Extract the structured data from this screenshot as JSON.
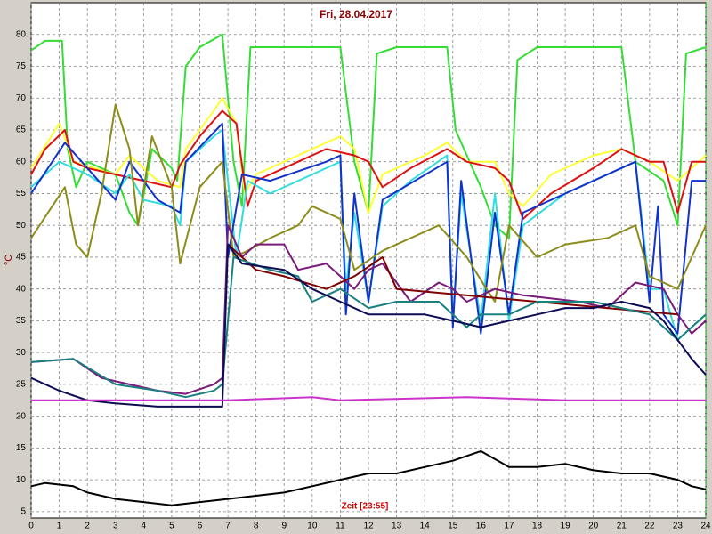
{
  "chart_data": {
    "type": "line",
    "title": "Fri, 28.04.2017",
    "xlabel": "Zeit [23:55]",
    "ylabel": "°C",
    "xlim": [
      0,
      24
    ],
    "xticks": [
      0,
      1,
      2,
      3,
      4,
      5,
      6,
      7,
      8,
      9,
      10,
      11,
      12,
      13,
      14,
      15,
      16,
      17,
      18,
      19,
      20,
      21,
      22,
      23,
      24
    ],
    "ylim": [
      4,
      85
    ],
    "yticks": [
      5,
      10,
      15,
      20,
      25,
      30,
      35,
      40,
      45,
      50,
      55,
      60,
      65,
      70,
      75,
      80
    ],
    "grid": true,
    "series": [
      {
        "color": "#33dd33",
        "x": [
          0,
          0.5,
          1.1,
          1.3,
          1.6,
          2,
          2.5,
          3,
          3.5,
          3.8,
          4.3,
          5,
          5.2,
          5.5,
          6,
          6.8,
          7.2,
          7.5,
          7.8,
          8.5,
          10,
          11,
          11.5,
          12,
          12.3,
          13,
          14.8,
          15.1,
          16,
          16.5,
          17,
          17.3,
          18,
          21,
          21.5,
          22.5,
          23,
          23.3,
          24
        ],
        "values": [
          77.5,
          79,
          79,
          62,
          56,
          60,
          59,
          58,
          52,
          50,
          62,
          59,
          57,
          75,
          78,
          80,
          60,
          53,
          78,
          78,
          78,
          78,
          60,
          52,
          77,
          78,
          78,
          65,
          56,
          50,
          48,
          76,
          78,
          78,
          60,
          57,
          50,
          77,
          78
        ]
      },
      {
        "color": "#ffff33",
        "x": [
          0,
          1,
          1.5,
          3,
          3.5,
          4.5,
          5.3,
          5.5,
          6.5,
          6.8,
          7.3,
          7.6,
          8,
          10,
          11,
          11.5,
          12,
          12.5,
          14,
          14.8,
          15.5,
          16.5,
          17,
          17.5,
          18.5,
          20,
          21,
          22,
          23,
          24
        ],
        "values": [
          59,
          66,
          60,
          58,
          61,
          57,
          56,
          62,
          68,
          70,
          66,
          55,
          58,
          62,
          64,
          62,
          52,
          58,
          61,
          63,
          60,
          60,
          55,
          53,
          58,
          61,
          62,
          60,
          57,
          61
        ]
      },
      {
        "color": "#dd1111",
        "x": [
          0,
          0.5,
          1.2,
          1.5,
          2,
          3,
          4,
          5,
          5.3,
          6,
          6.8,
          7.3,
          7.7,
          8,
          9.5,
          10.5,
          11.5,
          12,
          12.5,
          13.5,
          14.8,
          15.5,
          16.5,
          17,
          17.5,
          18.5,
          20,
          21,
          22,
          22.5,
          23,
          23.5,
          24
        ],
        "values": [
          58,
          62,
          65,
          60,
          59,
          58,
          57,
          56,
          59.5,
          64,
          68,
          66,
          53,
          57,
          60,
          62,
          61,
          60,
          56,
          59,
          62,
          60,
          59,
          57,
          51,
          55,
          59,
          62,
          60,
          60,
          52,
          60,
          60
        ]
      },
      {
        "color": "#33dddd",
        "x": [
          0,
          1,
          2,
          3,
          3.5,
          4,
          5,
          5.3,
          5.5,
          6.5,
          6.8,
          7.3,
          7.7,
          8.5,
          10,
          11,
          11.2,
          11.5,
          12,
          12.5,
          13.5,
          14.8,
          15,
          15.3,
          16,
          16.5,
          17,
          17.5,
          19,
          20.5,
          21.5,
          22,
          22.5,
          23,
          24
        ],
        "values": [
          56,
          60,
          58,
          55,
          58,
          54,
          53,
          50,
          60,
          64,
          65,
          45,
          57,
          55,
          58,
          60,
          40,
          52,
          38,
          53,
          57,
          61,
          35,
          55,
          35,
          55,
          35,
          50,
          55,
          58,
          60,
          40,
          40,
          32,
          36
        ]
      },
      {
        "color": "#1133cc",
        "x": [
          0,
          1.2,
          3,
          3.5,
          4.5,
          5.3,
          5.5,
          6.8,
          7,
          7.5,
          8.5,
          10.5,
          11,
          11.2,
          11.5,
          12,
          12.5,
          14.8,
          15,
          15.3,
          16,
          16.5,
          17,
          17.5,
          19.5,
          21.5,
          22,
          22.3,
          22.5,
          23,
          23.5,
          24
        ],
        "values": [
          55,
          63,
          54,
          60,
          54,
          52,
          60,
          66,
          45,
          58,
          57,
          60,
          61,
          36,
          55,
          38,
          54,
          60,
          34,
          57,
          33,
          52,
          36,
          52,
          56,
          60,
          38,
          53,
          36,
          33,
          57,
          57
        ]
      },
      {
        "color": "#8c8c1a",
        "x": [
          0,
          1.2,
          1.6,
          2,
          2.5,
          3,
          3.5,
          3.8,
          4.3,
          5,
          5.3,
          6,
          6.8,
          7.2,
          7.7,
          8.5,
          9.5,
          10,
          11,
          11.5,
          12.5,
          13.5,
          14.5,
          15.5,
          16.2,
          16.5,
          17,
          18,
          19,
          20.5,
          21.5,
          22,
          23,
          23.5,
          24
        ],
        "values": [
          48,
          56,
          47,
          45,
          55,
          69,
          62,
          50,
          64,
          56,
          44,
          56,
          60,
          45,
          46,
          48,
          50,
          53,
          51,
          43,
          46,
          48,
          50,
          45,
          40,
          38,
          50,
          45,
          47,
          48,
          50,
          42,
          40,
          45,
          50
        ]
      },
      {
        "color": "#7a1a7a",
        "x": [
          0,
          1.5,
          2.5,
          3.5,
          4.5,
          5.5,
          6.5,
          6.8,
          7,
          7.5,
          8,
          9,
          9.5,
          10.5,
          11.5,
          12,
          12.5,
          13.5,
          14.5,
          15,
          15.5,
          16.5,
          17.5,
          19.5,
          20.5,
          21.5,
          22.5,
          23,
          23.5,
          24
        ],
        "values": [
          28.5,
          29,
          26,
          25,
          24,
          23.5,
          25,
          26,
          50,
          45,
          47,
          47,
          43,
          44,
          40,
          43,
          44,
          38,
          41,
          40,
          38,
          40,
          39,
          38,
          37,
          41,
          40,
          36,
          33,
          35
        ]
      },
      {
        "color": "#800000",
        "x": [
          7,
          8,
          9,
          10.5,
          11.5,
          12.5,
          13,
          23
        ],
        "values": [
          47,
          43,
          42,
          40,
          42,
          45,
          40,
          36
        ]
      },
      {
        "color": "#1a8080",
        "x": [
          0,
          1.5,
          3,
          4.5,
          5.5,
          6.5,
          6.8,
          7.2,
          8.5,
          9.5,
          10,
          11,
          12,
          13,
          14.5,
          15.5,
          16,
          17,
          18,
          20,
          21,
          22,
          23,
          24
        ],
        "values": [
          28.5,
          29,
          25,
          24,
          23,
          24,
          25,
          45,
          43,
          42,
          38,
          40,
          37,
          38,
          38,
          34,
          36,
          36,
          38,
          38,
          37,
          36,
          32,
          36
        ]
      },
      {
        "color": "#0d0d55",
        "x": [
          0,
          1,
          2,
          3,
          4.5,
          6.8,
          7,
          7.5,
          9,
          10,
          11,
          12,
          13,
          14,
          15,
          16,
          17,
          18,
          19,
          20,
          21,
          22,
          22.5,
          23,
          23.5,
          24
        ],
        "values": [
          26,
          24,
          22.5,
          22,
          21.5,
          21.5,
          47,
          44,
          43,
          40,
          38,
          36,
          36,
          36,
          35,
          34,
          35,
          36,
          37,
          37,
          38,
          37,
          35,
          32,
          29,
          26.5
        ]
      },
      {
        "color": "#cc33cc",
        "x": [
          0,
          7,
          10,
          11,
          15.5,
          19,
          21,
          24
        ],
        "values": [
          22.5,
          22.5,
          23,
          22.5,
          23,
          22.5,
          22.5,
          22.5
        ]
      },
      {
        "color": "#000000",
        "x": [
          0,
          0.5,
          1.5,
          2,
          3,
          4,
          5,
          6,
          7,
          8,
          9,
          10,
          11,
          12,
          13,
          14,
          15,
          16,
          17,
          18,
          19,
          20,
          21,
          22,
          23,
          23.5,
          24
        ],
        "values": [
          9,
          9.5,
          9,
          8,
          7,
          6.5,
          6,
          6.5,
          7,
          7.5,
          8,
          9,
          10,
          11,
          11,
          12,
          13,
          14.5,
          12,
          12,
          12.5,
          11.5,
          11,
          11,
          10,
          9,
          8.5
        ]
      }
    ]
  }
}
